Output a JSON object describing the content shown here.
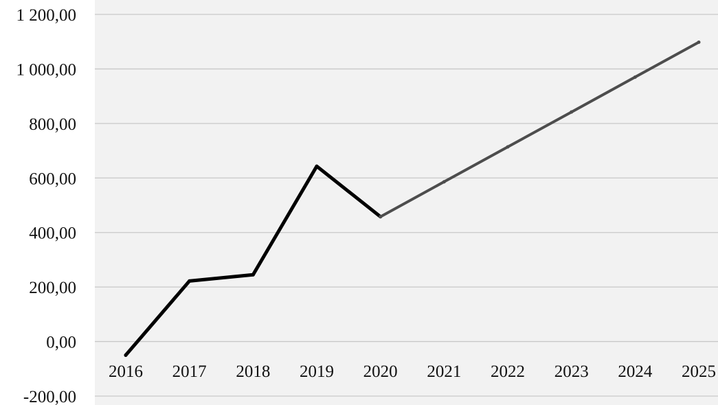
{
  "chart_data": {
    "type": "line",
    "categories": [
      "2016",
      "2017",
      "2018",
      "2019",
      "2020",
      "2021",
      "2022",
      "2023",
      "2024",
      "2025"
    ],
    "series": [
      {
        "values": [
          -50,
          222,
          245,
          643,
          458,
          null,
          null,
          null,
          null,
          null
        ],
        "color": "#000000"
      },
      {
        "values": [
          null,
          null,
          null,
          null,
          458,
          586,
          714,
          842,
          970,
          1098
        ],
        "color": "#4d4d4d"
      }
    ],
    "ylim": [
      -200,
      1200
    ],
    "yticks": [
      {
        "value": -200,
        "label": "-200,00"
      },
      {
        "value": 0,
        "label": "0,00"
      },
      {
        "value": 200,
        "label": "200,00"
      },
      {
        "value": 400,
        "label": "400,00"
      },
      {
        "value": 600,
        "label": "600,00"
      },
      {
        "value": 800,
        "label": "800,00"
      },
      {
        "value": 1000,
        "label": "1 000,00"
      },
      {
        "value": 1200,
        "label": "1 200,00"
      }
    ],
    "grid": true,
    "plot_background": "#f2f2f2",
    "gridline_color": "#c8c8c8"
  }
}
